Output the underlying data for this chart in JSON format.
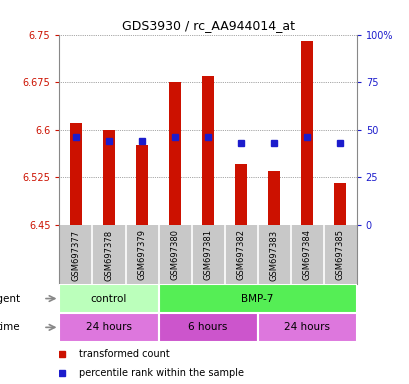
{
  "title": "GDS3930 / rc_AA944014_at",
  "samples": [
    "GSM697377",
    "GSM697378",
    "GSM697379",
    "GSM697380",
    "GSM697381",
    "GSM697382",
    "GSM697383",
    "GSM697384",
    "GSM697385"
  ],
  "transformed_counts": [
    6.61,
    6.6,
    6.575,
    6.675,
    6.685,
    6.545,
    6.535,
    6.74,
    6.515
  ],
  "percentile_ranks": [
    46,
    44,
    44,
    46,
    46,
    43,
    43,
    46,
    43
  ],
  "baseline": 6.45,
  "ylim_left": [
    6.45,
    6.75
  ],
  "ylim_right": [
    0,
    100
  ],
  "left_yticks": [
    6.45,
    6.525,
    6.6,
    6.675,
    6.75
  ],
  "right_yticks": [
    0,
    25,
    50,
    75,
    100
  ],
  "right_ytick_labels": [
    "0",
    "25",
    "50",
    "75",
    "100%"
  ],
  "bar_color": "#cc1100",
  "dot_color": "#1c1ccc",
  "agent_groups": [
    {
      "label": "control",
      "start": 0,
      "end": 3,
      "color": "#bbffbb"
    },
    {
      "label": "BMP-7",
      "start": 3,
      "end": 9,
      "color": "#55ee55"
    }
  ],
  "time_groups": [
    {
      "label": "24 hours",
      "start": 0,
      "end": 3,
      "color": "#dd77dd"
    },
    {
      "label": "6 hours",
      "start": 3,
      "end": 6,
      "color": "#cc55cc"
    },
    {
      "label": "24 hours",
      "start": 6,
      "end": 9,
      "color": "#dd77dd"
    }
  ],
  "legend_items": [
    {
      "label": "transformed count",
      "color": "#cc1100"
    },
    {
      "label": "percentile rank within the sample",
      "color": "#1c1ccc"
    }
  ],
  "bg_color": "#ffffff",
  "plot_bg_color": "#ffffff",
  "grid_color": "#555555",
  "tick_color_left": "#cc1100",
  "tick_color_right": "#1c1ccc",
  "sample_bg_color": "#c8c8c8",
  "sample_sep_color": "#ffffff",
  "bar_width": 0.35
}
